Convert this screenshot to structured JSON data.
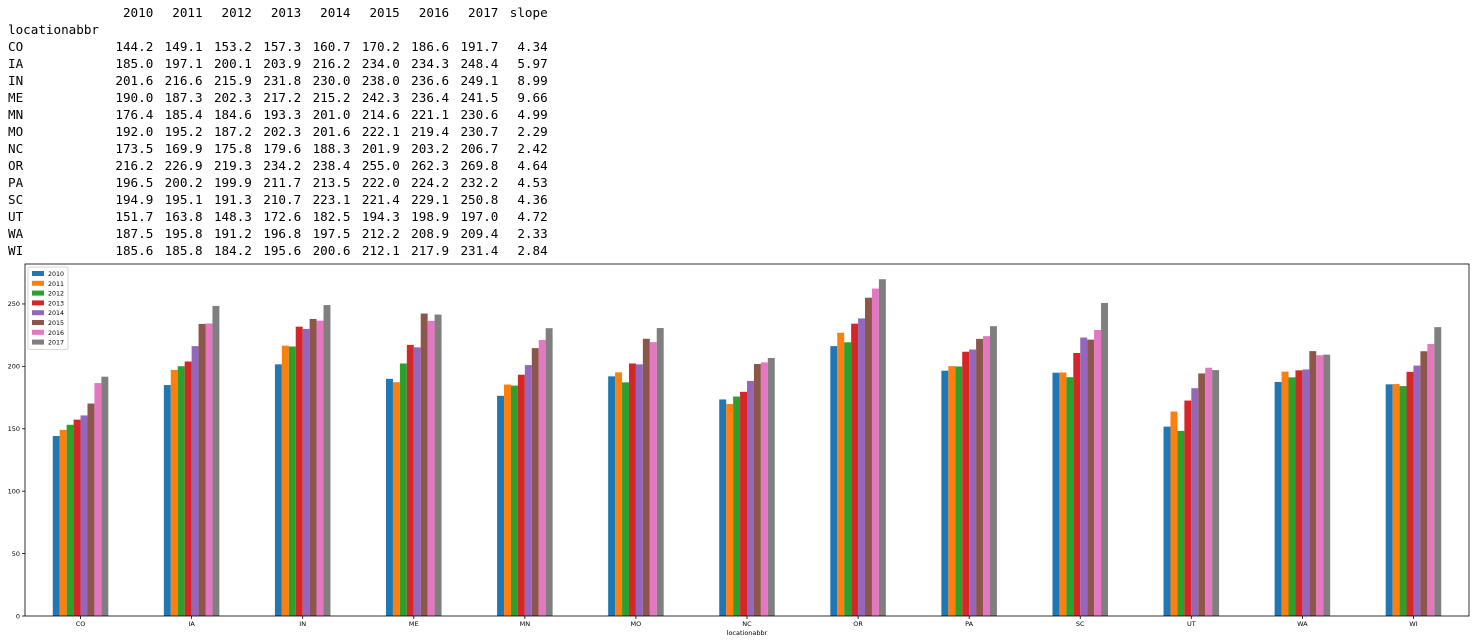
{
  "table": {
    "columns": [
      "2010",
      "2011",
      "2012",
      "2013",
      "2014",
      "2015",
      "2016",
      "2017",
      "slope"
    ],
    "index_name": "locationabbr",
    "rows": [
      {
        "label": "CO",
        "values": [
          "144.2",
          "149.1",
          "153.2",
          "157.3",
          "160.7",
          "170.2",
          "186.6",
          "191.7",
          "4.34"
        ]
      },
      {
        "label": "IA",
        "values": [
          "185.0",
          "197.1",
          "200.1",
          "203.9",
          "216.2",
          "234.0",
          "234.3",
          "248.4",
          "5.97"
        ]
      },
      {
        "label": "IN",
        "values": [
          "201.6",
          "216.6",
          "215.9",
          "231.8",
          "230.0",
          "238.0",
          "236.6",
          "249.1",
          "8.99"
        ]
      },
      {
        "label": "ME",
        "values": [
          "190.0",
          "187.3",
          "202.3",
          "217.2",
          "215.2",
          "242.3",
          "236.4",
          "241.5",
          "9.66"
        ]
      },
      {
        "label": "MN",
        "values": [
          "176.4",
          "185.4",
          "184.6",
          "193.3",
          "201.0",
          "214.6",
          "221.1",
          "230.6",
          "4.99"
        ]
      },
      {
        "label": "MO",
        "values": [
          "192.0",
          "195.2",
          "187.2",
          "202.3",
          "201.6",
          "222.1",
          "219.4",
          "230.7",
          "2.29"
        ]
      },
      {
        "label": "NC",
        "values": [
          "173.5",
          "169.9",
          "175.8",
          "179.6",
          "188.3",
          "201.9",
          "203.2",
          "206.7",
          "2.42"
        ]
      },
      {
        "label": "OR",
        "values": [
          "216.2",
          "226.9",
          "219.3",
          "234.2",
          "238.4",
          "255.0",
          "262.3",
          "269.8",
          "4.64"
        ]
      },
      {
        "label": "PA",
        "values": [
          "196.5",
          "200.2",
          "199.9",
          "211.7",
          "213.5",
          "222.0",
          "224.2",
          "232.2",
          "4.53"
        ]
      },
      {
        "label": "SC",
        "values": [
          "194.9",
          "195.1",
          "191.3",
          "210.7",
          "223.1",
          "221.4",
          "229.1",
          "250.8",
          "4.36"
        ]
      },
      {
        "label": "UT",
        "values": [
          "151.7",
          "163.8",
          "148.3",
          "172.6",
          "182.5",
          "194.3",
          "198.9",
          "197.0",
          "4.72"
        ]
      },
      {
        "label": "WA",
        "values": [
          "187.5",
          "195.8",
          "191.2",
          "196.8",
          "197.5",
          "212.2",
          "208.9",
          "209.4",
          "2.33"
        ]
      },
      {
        "label": "WI",
        "values": [
          "185.6",
          "185.8",
          "184.2",
          "195.6",
          "200.6",
          "212.1",
          "217.9",
          "231.4",
          "2.84"
        ]
      }
    ]
  },
  "chart_data": {
    "type": "bar",
    "title": "",
    "xlabel": "locationabbr",
    "ylabel": "",
    "ylim": [
      0,
      282
    ],
    "yticks": [
      0,
      50,
      100,
      150,
      200,
      250
    ],
    "legend_position": "top-left",
    "categories": [
      "CO",
      "IA",
      "IN",
      "ME",
      "MN",
      "MO",
      "NC",
      "OR",
      "PA",
      "SC",
      "UT",
      "WA",
      "WI"
    ],
    "series": [
      {
        "name": "2010",
        "color": "#1f77b4",
        "values": [
          144.2,
          185.0,
          201.6,
          190.0,
          176.4,
          192.0,
          173.5,
          216.2,
          196.5,
          194.9,
          151.7,
          187.5,
          185.6
        ]
      },
      {
        "name": "2011",
        "color": "#ff7f0e",
        "values": [
          149.1,
          197.1,
          216.6,
          187.3,
          185.4,
          195.2,
          169.9,
          226.9,
          200.2,
          195.1,
          163.8,
          195.8,
          185.8
        ]
      },
      {
        "name": "2012",
        "color": "#2ca02c",
        "values": [
          153.2,
          200.1,
          215.9,
          202.3,
          184.6,
          187.2,
          175.8,
          219.3,
          199.9,
          191.3,
          148.3,
          191.2,
          184.2
        ]
      },
      {
        "name": "2013",
        "color": "#d62728",
        "values": [
          157.3,
          203.9,
          231.8,
          217.2,
          193.3,
          202.3,
          179.6,
          234.2,
          211.7,
          210.7,
          172.6,
          196.8,
          195.6
        ]
      },
      {
        "name": "2014",
        "color": "#9467bd",
        "values": [
          160.7,
          216.2,
          230.0,
          215.2,
          201.0,
          201.6,
          188.3,
          238.4,
          213.5,
          223.1,
          182.5,
          197.5,
          200.6
        ]
      },
      {
        "name": "2015",
        "color": "#8c564b",
        "values": [
          170.2,
          234.0,
          238.0,
          242.3,
          214.6,
          222.1,
          201.9,
          255.0,
          222.0,
          221.4,
          194.3,
          212.2,
          212.1
        ]
      },
      {
        "name": "2016",
        "color": "#e377c2",
        "values": [
          186.6,
          234.3,
          236.6,
          236.4,
          221.1,
          219.4,
          203.2,
          262.3,
          224.2,
          229.1,
          198.9,
          208.9,
          217.9
        ]
      },
      {
        "name": "2017",
        "color": "#7f7f7f",
        "values": [
          191.7,
          248.4,
          249.1,
          241.5,
          230.6,
          230.7,
          206.7,
          269.8,
          232.2,
          250.8,
          197.0,
          209.4,
          231.4
        ]
      }
    ]
  }
}
